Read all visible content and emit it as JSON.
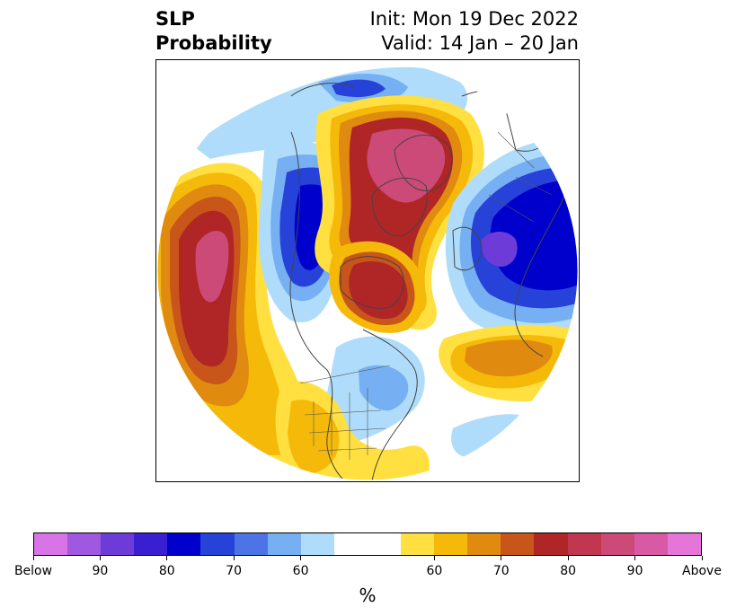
{
  "title": {
    "left_line1": "SLP",
    "left_line2": "Probability",
    "right_line1": "Init: Mon 19 Dec 2022",
    "right_line2": "Valid: 14 Jan – 20 Jan"
  },
  "colorbar": {
    "unit": "%",
    "segments": [
      "#d974e8",
      "#9f58df",
      "#6d3cd8",
      "#3a1fd2",
      "#0000cc",
      "#2742d9",
      "#4c74e6",
      "#76b0f2",
      "#afdcfa",
      "#ffffff",
      "#ffffff",
      "#ffe040",
      "#f5b90a",
      "#e08b10",
      "#c85519",
      "#b02525",
      "#c0374f",
      "#cc4a78",
      "#d95aa4",
      "#e675da"
    ],
    "ticks": [
      {
        "label": "Below",
        "seg": 0
      },
      {
        "label": "90",
        "seg": 2
      },
      {
        "label": "80",
        "seg": 4
      },
      {
        "label": "70",
        "seg": 6
      },
      {
        "label": "60",
        "seg": 8
      },
      {
        "label": "60",
        "seg": 12
      },
      {
        "label": "70",
        "seg": 14
      },
      {
        "label": "80",
        "seg": 16
      },
      {
        "label": "90",
        "seg": 18
      },
      {
        "label": "Above",
        "seg": 20
      }
    ]
  },
  "map": {
    "projection": "north-polar-stereographic",
    "colors": {
      "below_60": "#afdcfa",
      "below_70": "#76b0f2",
      "below_80": "#2742d9",
      "below_90": "#0000cc",
      "below_95": "#6d3cd8",
      "above_60": "#ffe040",
      "above_65": "#f5b90a",
      "above_70": "#e08b10",
      "above_75": "#c85519",
      "above_80": "#b02525",
      "above_90": "#cc4a78",
      "coast": "#444444",
      "border": "#555555"
    }
  }
}
